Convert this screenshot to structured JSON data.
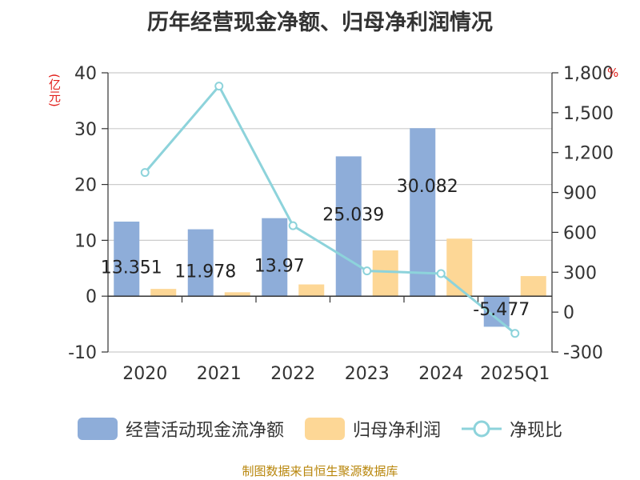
{
  "title": "历年经营现金净额、归母净利润情况",
  "footer": "制图数据来自恒生聚源数据库",
  "chart_data": {
    "type": "bar",
    "categories": [
      "2020",
      "2021",
      "2022",
      "2023",
      "2024",
      "2025Q1"
    ],
    "series": [
      {
        "name": "经营活动现金流净额",
        "type": "bar",
        "axis": "left",
        "color": "#8eadd9",
        "values": [
          13.351,
          11.978,
          13.97,
          25.039,
          30.082,
          -5.477
        ]
      },
      {
        "name": "归母净利润",
        "type": "bar",
        "axis": "left",
        "color": "#fdd796",
        "values": [
          1.3,
          0.7,
          2.1,
          8.2,
          10.3,
          3.6
        ]
      },
      {
        "name": "净现比",
        "type": "line",
        "axis": "right",
        "color": "#8dd3db",
        "values": [
          1050,
          1700,
          650,
          310,
          290,
          -160
        ]
      }
    ],
    "data_labels": [
      "13.351",
      "11.978",
      "13.97",
      "25.039",
      "30.082",
      "-5.477"
    ],
    "ylabel": "(亿元)",
    "y2label": "%",
    "ylim": [
      -10,
      40
    ],
    "yticks": [
      "40",
      "30",
      "20",
      "10",
      "0",
      "-10"
    ],
    "y2lim": [
      -300,
      1800
    ],
    "y2ticks": [
      "1,800",
      "1,500",
      "1,200",
      "900",
      "600",
      "300",
      "0",
      "-300"
    ],
    "grid": true,
    "legend": "bottom"
  }
}
